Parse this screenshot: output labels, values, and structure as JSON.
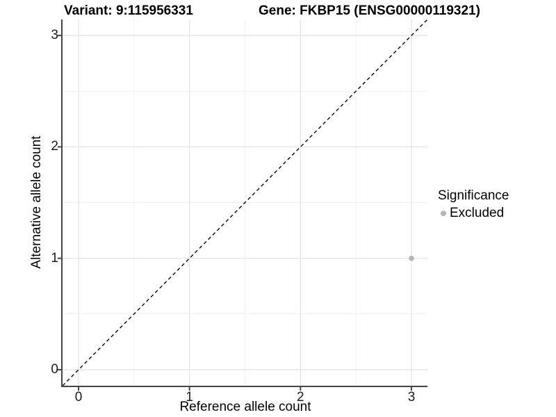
{
  "chart_data": {
    "type": "scatter",
    "title_left": "Variant: 9:115956331",
    "title_right": "Gene: FKBP15 (ENSG00000119321)",
    "xlabel": "Reference allele count",
    "ylabel": "Alternative allele count",
    "x_ticks": [
      0,
      1,
      2,
      3
    ],
    "y_ticks": [
      0,
      1,
      2,
      3
    ],
    "xlim": [
      -0.144,
      3.144
    ],
    "ylim": [
      -0.144,
      3.144
    ],
    "grid": {
      "major": true,
      "minor": true,
      "major_color": "#e4e4e4",
      "minor_color": "#f1f1f1"
    },
    "reference_line": {
      "slope": 1,
      "intercept": 0,
      "style": "dashed",
      "color": "#000000"
    },
    "series": [
      {
        "name": "Excluded",
        "color": "#b5b5b5",
        "points": [
          [
            3,
            1
          ]
        ]
      }
    ],
    "legend": {
      "title": "Significance",
      "position": "right",
      "entries": [
        {
          "label": "Excluded",
          "color": "#b5b5b5"
        }
      ]
    },
    "colors": {
      "axis_line": "#454545",
      "tick_label": "#1a1a1a",
      "background": "#ffffff"
    }
  }
}
